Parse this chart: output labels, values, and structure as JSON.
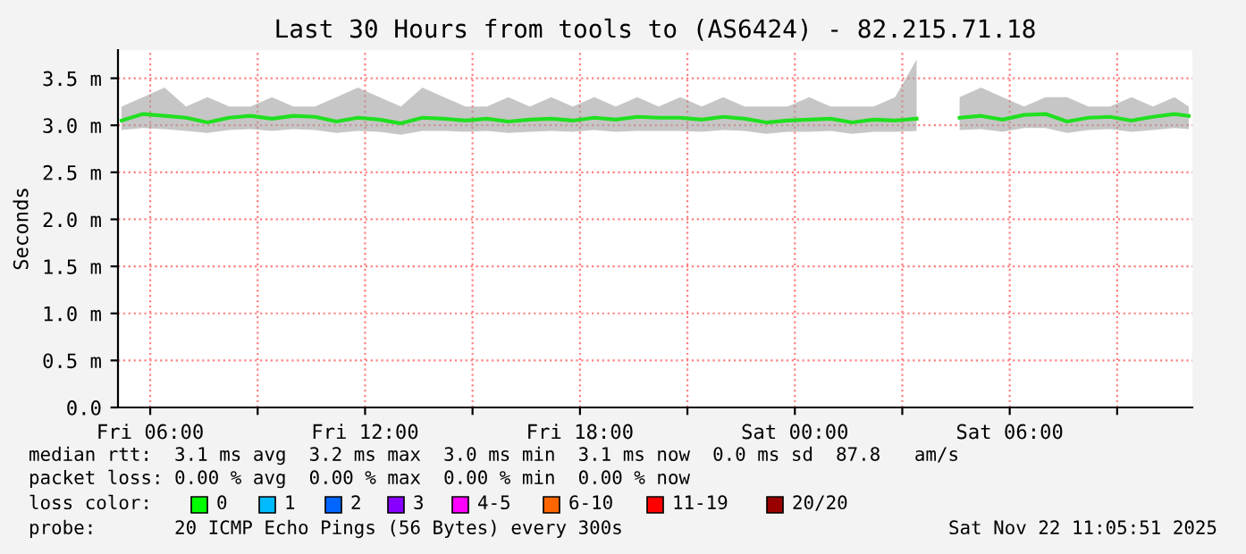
{
  "chart_data": {
    "type": "line",
    "title": "Last 30 Hours from tools to (AS6424) - 82.215.71.18",
    "ylabel": "Seconds",
    "x": [
      "2025-11-21T05:12",
      "2025-11-21T05:48",
      "2025-11-21T06:24",
      "2025-11-21T07:00",
      "2025-11-21T07:36",
      "2025-11-21T08:12",
      "2025-11-21T08:48",
      "2025-11-21T09:24",
      "2025-11-21T10:00",
      "2025-11-21T10:36",
      "2025-11-21T11:12",
      "2025-11-21T11:48",
      "2025-11-21T12:24",
      "2025-11-21T13:00",
      "2025-11-21T13:36",
      "2025-11-21T14:12",
      "2025-11-21T14:48",
      "2025-11-21T15:24",
      "2025-11-21T16:00",
      "2025-11-21T16:36",
      "2025-11-21T17:12",
      "2025-11-21T17:48",
      "2025-11-21T18:24",
      "2025-11-21T19:00",
      "2025-11-21T19:36",
      "2025-11-21T20:12",
      "2025-11-21T20:48",
      "2025-11-21T21:24",
      "2025-11-21T22:00",
      "2025-11-21T22:36",
      "2025-11-21T23:12",
      "2025-11-21T23:48",
      "2025-11-22T00:24",
      "2025-11-22T01:00",
      "2025-11-22T01:36",
      "2025-11-22T02:12",
      "2025-11-22T02:48",
      "2025-11-22T03:24",
      "2025-11-22T04:00",
      "2025-11-22T04:36",
      "2025-11-22T05:12",
      "2025-11-22T05:48",
      "2025-11-22T06:24",
      "2025-11-22T07:00",
      "2025-11-22T07:36",
      "2025-11-22T08:12",
      "2025-11-22T08:48",
      "2025-11-22T09:24",
      "2025-11-22T10:00",
      "2025-11-22T10:36",
      "2025-11-22T11:00"
    ],
    "series": [
      {
        "color": "#20e020",
        "values": [
          3.05,
          3.12,
          3.1,
          3.08,
          3.03,
          3.08,
          3.1,
          3.07,
          3.1,
          3.09,
          3.04,
          3.08,
          3.06,
          3.02,
          3.08,
          3.07,
          3.05,
          3.07,
          3.04,
          3.06,
          3.07,
          3.05,
          3.08,
          3.06,
          3.09,
          3.08,
          3.08,
          3.06,
          3.09,
          3.07,
          3.03,
          3.05,
          3.06,
          3.07,
          3.03,
          3.06,
          3.05,
          3.07,
          null,
          3.08,
          3.1,
          3.06,
          3.11,
          3.12,
          3.04,
          3.08,
          3.09,
          3.05,
          3.09,
          3.12,
          3.1
        ],
        "lower": [
          2.95,
          2.97,
          2.96,
          2.94,
          2.92,
          2.95,
          2.96,
          2.94,
          2.96,
          2.95,
          2.92,
          2.94,
          2.93,
          2.9,
          2.94,
          2.94,
          2.93,
          2.94,
          2.92,
          2.93,
          2.94,
          2.93,
          2.95,
          2.93,
          2.94,
          2.94,
          2.94,
          2.93,
          2.95,
          2.94,
          2.91,
          2.93,
          2.93,
          2.94,
          2.91,
          2.93,
          2.93,
          2.94,
          null,
          2.95,
          2.96,
          2.93,
          2.97,
          2.97,
          2.92,
          2.95,
          2.96,
          2.93,
          2.95,
          2.97,
          2.96
        ],
        "upper": [
          3.2,
          3.3,
          3.4,
          3.2,
          3.3,
          3.2,
          3.2,
          3.3,
          3.2,
          3.2,
          3.3,
          3.4,
          3.3,
          3.2,
          3.4,
          3.3,
          3.2,
          3.2,
          3.3,
          3.2,
          3.3,
          3.2,
          3.3,
          3.2,
          3.3,
          3.2,
          3.3,
          3.2,
          3.3,
          3.2,
          3.2,
          3.2,
          3.3,
          3.2,
          3.2,
          3.2,
          3.3,
          3.7,
          null,
          3.3,
          3.4,
          3.3,
          3.2,
          3.3,
          3.3,
          3.2,
          3.2,
          3.3,
          3.2,
          3.3,
          3.2
        ]
      }
    ],
    "xlim": [
      "2025-11-21T05:06",
      "2025-11-22T11:06"
    ],
    "xticks": [
      {
        "value": "2025-11-21T06:00",
        "label": "Fri 06:00"
      },
      {
        "value": "2025-11-21T09:00",
        "label": null
      },
      {
        "value": "2025-11-21T12:00",
        "label": "Fri 12:00"
      },
      {
        "value": "2025-11-21T15:00",
        "label": null
      },
      {
        "value": "2025-11-21T18:00",
        "label": "Fri 18:00"
      },
      {
        "value": "2025-11-21T21:00",
        "label": null
      },
      {
        "value": "2025-11-22T00:00",
        "label": "Sat 00:00"
      },
      {
        "value": "2025-11-22T03:00",
        "label": null
      },
      {
        "value": "2025-11-22T06:00",
        "label": "Sat 06:00"
      },
      {
        "value": "2025-11-22T09:00",
        "label": null
      }
    ],
    "ylim": [
      0,
      3.8
    ],
    "yticks": [
      {
        "value": 0,
        "label": "0.0"
      },
      {
        "value": 0.5,
        "label": "0.5 m"
      },
      {
        "value": 1.0,
        "label": "1.0 m"
      },
      {
        "value": 1.5,
        "label": "1.5 m"
      },
      {
        "value": 2.0,
        "label": "2.0 m"
      },
      {
        "value": 2.5,
        "label": "2.5 m"
      },
      {
        "value": 3.0,
        "label": "3.0 m"
      },
      {
        "value": 3.5,
        "label": "3.5 m"
      }
    ],
    "grid": true,
    "annotations": [
      "median rtt:  3.1 ms avg  3.2 ms max  3.0 ms min  3.1 ms now  0.0 ms sd  87.8   am/s",
      "packet loss: 0.00 % avg  0.00 % max  0.00 % min  0.00 % now",
      "loss color:",
      "0",
      "1",
      "2",
      "3",
      "4-5",
      "6-10",
      "11-19",
      "20/20",
      "probe:       20 ICMP Echo Pings (56 Bytes) every 300s",
      "Sat Nov 22 11:05:51 2025"
    ]
  }
}
